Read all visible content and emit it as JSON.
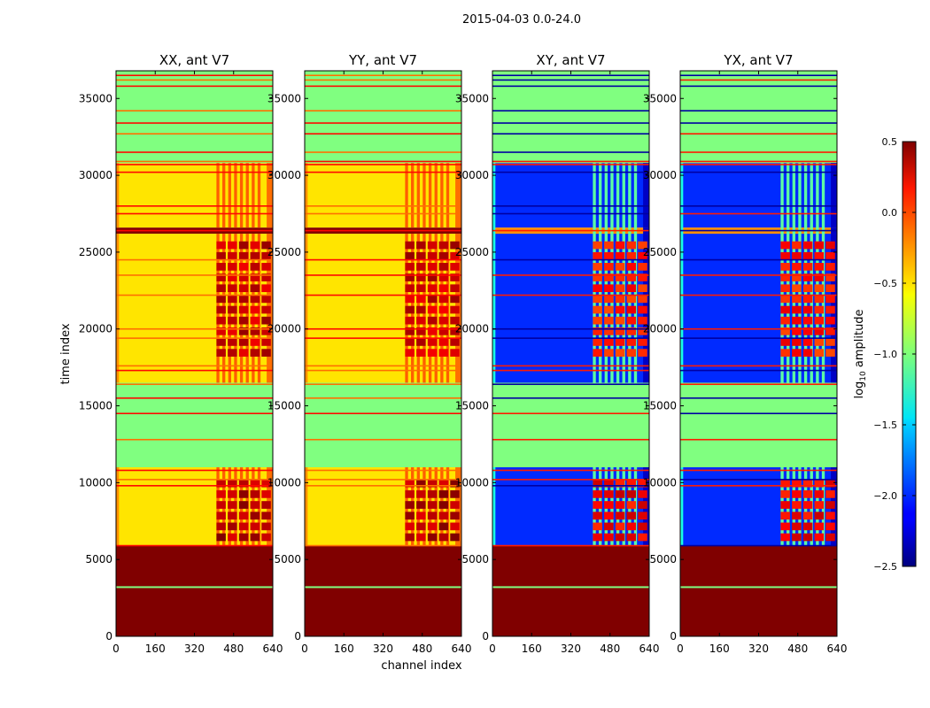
{
  "chart_data": {
    "type": "heatmap",
    "suptitle": "2015-04-03 0.0-24.0",
    "xlabel": "channel index",
    "ylabel": "time index",
    "xlim": [
      0,
      640
    ],
    "ylim": [
      0,
      36800
    ],
    "xticks": [
      "0",
      "160",
      "320",
      "480",
      "640"
    ],
    "xtick_values": [
      0,
      160,
      320,
      480,
      640
    ],
    "yticks": [
      "0",
      "5000",
      "10000",
      "15000",
      "20000",
      "25000",
      "30000",
      "35000"
    ],
    "ytick_values": [
      0,
      5000,
      10000,
      15000,
      20000,
      25000,
      30000,
      35000
    ],
    "colorbar": {
      "label": "log10 amplitude",
      "label_base": "log",
      "label_sub": "10",
      "label_rest": " amplitude",
      "range": [
        -2.5,
        0.5
      ],
      "ticks": [
        "0.5",
        "0.0",
        "−0.5",
        "−1.0",
        "−1.5",
        "−2.0",
        "−2.5"
      ],
      "tick_values": [
        0.5,
        0.0,
        -0.5,
        -1.0,
        -1.5,
        -2.0,
        -2.5
      ],
      "colormap": "jet"
    },
    "panels": [
      {
        "title": "XX, ant V7",
        "kind": "parallel"
      },
      {
        "title": "YY, ant V7",
        "kind": "parallel"
      },
      {
        "title": "XY, ant V7",
        "kind": "cross"
      },
      {
        "title": "YX, ant V7",
        "kind": "cross"
      }
    ],
    "time_segments": [
      {
        "t0": 0,
        "t1": 5900,
        "parallel": 0.5,
        "cross": 0.5
      },
      {
        "t0": 5900,
        "t1": 11000,
        "parallel": -0.55,
        "cross": -2.0
      },
      {
        "t0": 11000,
        "t1": 16500,
        "parallel": -1.0,
        "cross": -1.0
      },
      {
        "t0": 16500,
        "t1": 17600,
        "parallel": -0.55,
        "cross": -2.0
      },
      {
        "t0": 17600,
        "t1": 26200,
        "parallel": -0.55,
        "cross": -2.0
      },
      {
        "t0": 26200,
        "t1": 26600,
        "parallel": 0.5,
        "cross": -0.3
      },
      {
        "t0": 26600,
        "t1": 30800,
        "parallel": -0.55,
        "cross": -2.0
      },
      {
        "t0": 30800,
        "t1": 36800,
        "parallel": -1.0,
        "cross": -1.0
      }
    ],
    "rfi_band": {
      "c0": 410,
      "c1": 600
    },
    "hot_blocks": [
      {
        "t0": 6200,
        "t1": 10000,
        "parallel": 0.5,
        "cross": 0.3
      },
      {
        "t0": 18200,
        "t1": 25500,
        "parallel": 0.45,
        "cross": 0.2
      }
    ],
    "stripe_lines": [
      3200,
      5900,
      9800,
      10200,
      10800,
      12800,
      14500,
      15500,
      16400,
      17300,
      17600,
      19400,
      20000,
      22200,
      23500,
      24500,
      26400,
      27500,
      28000,
      30200,
      30700,
      30900,
      31500,
      32700,
      33400,
      34200,
      35800,
      36200,
      36500
    ]
  }
}
